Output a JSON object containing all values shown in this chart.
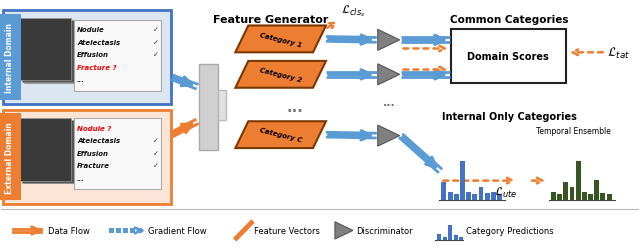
{
  "fig_width": 6.4,
  "fig_height": 2.51,
  "dpi": 100,
  "bg_color": "#ffffff",
  "orange": "#ed7d31",
  "blue": "#4472c4",
  "light_blue": "#5b9bd5",
  "dark_blue": "#2e75b6",
  "gray_tri": "#808080",
  "blue_bar_color": "#4472c4",
  "green_bar_color": "#375623",
  "int_box_fill": "#dce6f1",
  "int_box_edge": "#4472c4",
  "ext_box_fill": "#fce4d6",
  "ext_box_edge": "#ed7d31",
  "title_feature": "Feature Generator",
  "title_common": "Common Categories",
  "title_internal": "Internal Only Categories",
  "title_temporal": "Temporal Ensemble",
  "label_domain_scores": "Domain Scores",
  "label_ltat": "$\\mathcal{L}_{tat}$",
  "label_lcls": "$\\mathcal{L}_{cls_s}$",
  "label_lute": "$\\mathcal{L}_{ute}$",
  "blue_bars": [
    0.28,
    0.13,
    0.09,
    0.62,
    0.13,
    0.09,
    0.2,
    0.11,
    0.13,
    0.09
  ],
  "green_bars": [
    0.13,
    0.09,
    0.28,
    0.2,
    0.62,
    0.13,
    0.09,
    0.32,
    0.11,
    0.09
  ]
}
